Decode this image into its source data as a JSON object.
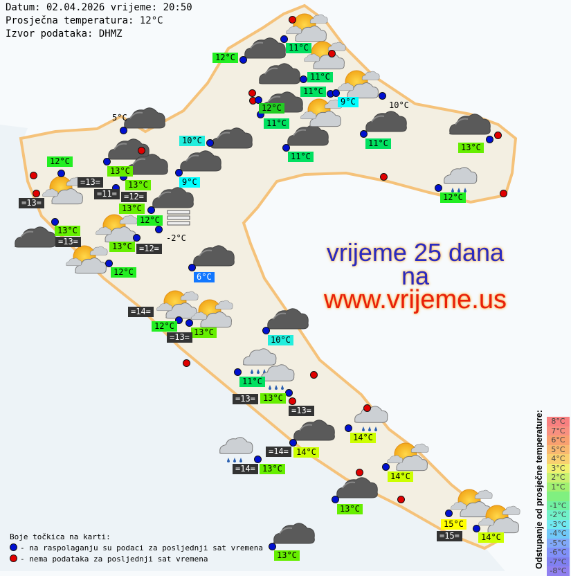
{
  "header": {
    "date_line": "Datum: 02.04.2026 vrijeme: 20:50",
    "avg_temp_line": "Prosječna temperatura: 12°C",
    "source_line": "Izvor podataka: DHMZ"
  },
  "promo": {
    "line1": "vrijeme 25 dana",
    "line2": "na",
    "line3": "www.vrijeme.us",
    "color1": "#2a2ac0",
    "color3": "#e8200a"
  },
  "colors": {
    "available": "#0010d0",
    "unavailable": "#e00000",
    "land": "#f3efe2",
    "border": "#f5c27a",
    "sea": "#eef4f8"
  },
  "plain_labels": [
    "5°C",
    "10°C",
    "-2°C"
  ],
  "labels": [
    {
      "text": "11°C",
      "bg": "#00e060"
    },
    {
      "text": "12°C",
      "bg": "#22ee22"
    },
    {
      "text": "11°C",
      "bg": "#00e060"
    },
    {
      "text": "11°C",
      "bg": "#00e060"
    },
    {
      "text": "9°C",
      "bg": "#00ffff"
    },
    {
      "text": "12°C",
      "bg": "#22cc22"
    },
    {
      "text": "11°C",
      "bg": "#00e060"
    },
    {
      "text": "10°C",
      "bg": "#22eedd"
    },
    {
      "text": "11°C",
      "bg": "#00e060"
    },
    {
      "text": "11°C",
      "bg": "#00e060"
    },
    {
      "text": "13°C",
      "bg": "#66ee00"
    },
    {
      "text": "9°C",
      "bg": "#00ffff"
    },
    {
      "text": "12°C",
      "bg": "#22ee22"
    },
    {
      "text": "12°C",
      "bg": "#22ee22"
    },
    {
      "text": "13°C",
      "bg": "#66ee00"
    },
    {
      "text": "=13=",
      "bg": "#333333"
    },
    {
      "text": "=11=",
      "bg": "#333333"
    },
    {
      "text": "13°C",
      "bg": "#66ee00"
    },
    {
      "text": "=12=",
      "bg": "#333333"
    },
    {
      "text": "13°C",
      "bg": "#66ee00"
    },
    {
      "text": "=13=",
      "bg": "#333333"
    },
    {
      "text": "12°C",
      "bg": "#22ee22"
    },
    {
      "text": "13°C",
      "bg": "#66ee00"
    },
    {
      "text": "=13=",
      "bg": "#333333"
    },
    {
      "text": "13°C",
      "bg": "#66ee00"
    },
    {
      "text": "=12=",
      "bg": "#333333"
    },
    {
      "text": "12°C",
      "bg": "#22ee22"
    },
    {
      "text": "6°C",
      "bg": "#1177ff"
    },
    {
      "text": "=14=",
      "bg": "#333333"
    },
    {
      "text": "12°C",
      "bg": "#22ee22"
    },
    {
      "text": "13°C",
      "bg": "#66ee00"
    },
    {
      "text": "=13=",
      "bg": "#333333"
    },
    {
      "text": "10°C",
      "bg": "#22eedd"
    },
    {
      "text": "11°C",
      "bg": "#00e060"
    },
    {
      "text": "=13=",
      "bg": "#333333"
    },
    {
      "text": "13°C",
      "bg": "#66ee00"
    },
    {
      "text": "=13=",
      "bg": "#333333"
    },
    {
      "text": "14°C",
      "bg": "#ccff00"
    },
    {
      "text": "=14=",
      "bg": "#333333"
    },
    {
      "text": "14°C",
      "bg": "#ccff00"
    },
    {
      "text": "=14=",
      "bg": "#333333"
    },
    {
      "text": "13°C",
      "bg": "#66ee00"
    },
    {
      "text": "14°C",
      "bg": "#ccff00"
    },
    {
      "text": "13°C",
      "bg": "#66ee00"
    },
    {
      "text": "15°C",
      "bg": "#ffff00"
    },
    {
      "text": "=15=",
      "bg": "#333333"
    },
    {
      "text": "14°C",
      "bg": "#ccff00"
    },
    {
      "text": "13°C",
      "bg": "#66ee00"
    }
  ],
  "icons": {
    "dark_cloud": "overcast-icon",
    "partly": "partly-cloudy-icon",
    "rain": "rain-icon",
    "fog": "fog-icon"
  },
  "legend": {
    "title": "Boje točkica na karti:",
    "available": "- na raspolaganju su podaci za posljednji sat vremena",
    "unavailable": "- nema podataka za posljednji sat vremena"
  },
  "scale": {
    "title": "Odstupanje od prosječne temperature:",
    "steps": [
      {
        "label": "8°C",
        "color": "#f88080"
      },
      {
        "label": "7°C",
        "color": "#f89080"
      },
      {
        "label": "6°C",
        "color": "#f8a070"
      },
      {
        "label": "5°C",
        "color": "#f8b870"
      },
      {
        "label": "4°C",
        "color": "#f8d070"
      },
      {
        "label": "3°C",
        "color": "#f0f070"
      },
      {
        "label": "2°C",
        "color": "#c8f070"
      },
      {
        "label": "1°C",
        "color": "#a0f070"
      },
      {
        "label": "",
        "color": "#80f080"
      },
      {
        "label": "-1°C",
        "color": "#70f0a0"
      },
      {
        "label": "-2°C",
        "color": "#70f0c8"
      },
      {
        "label": "-3°C",
        "color": "#70e8f0"
      },
      {
        "label": "-4°C",
        "color": "#70c8f8"
      },
      {
        "label": "-5°C",
        "color": "#80a8f8"
      },
      {
        "label": "-6°C",
        "color": "#8090f8"
      },
      {
        "label": "-7°C",
        "color": "#8080f0"
      },
      {
        "label": "-8°C",
        "color": "#9080f0"
      }
    ]
  }
}
